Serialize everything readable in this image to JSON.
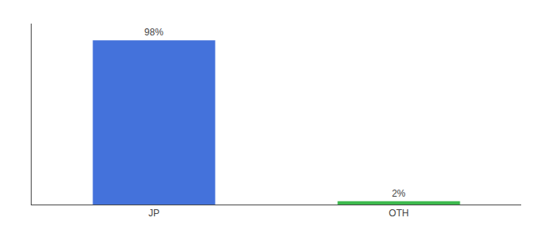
{
  "chart_data": {
    "type": "bar",
    "categories": [
      "JP",
      "OTH"
    ],
    "values": [
      98,
      2
    ],
    "value_labels": [
      "98%",
      "2%"
    ],
    "colors": [
      "#4472db",
      "#3dba4e"
    ],
    "ylim": [
      0,
      108
    ],
    "data_labels": true,
    "tick_labels": "x"
  }
}
